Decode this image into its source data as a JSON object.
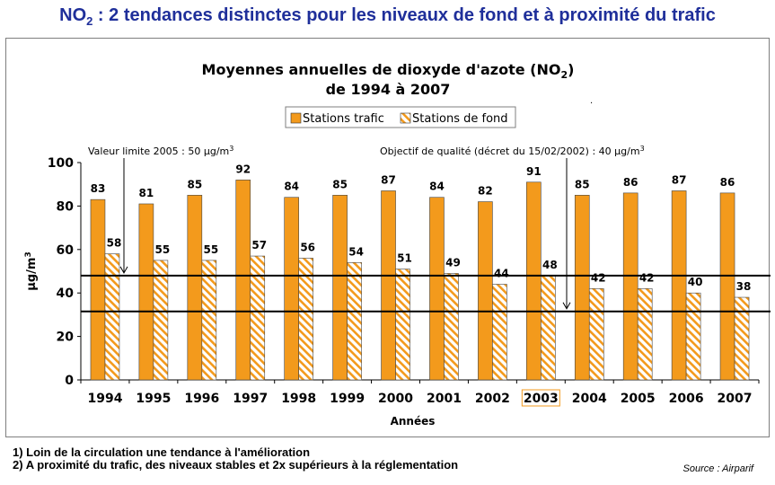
{
  "page": {
    "title_main": "NO",
    "title_sub": "2",
    "title_rest": " : 2 tendances distinctes pour les niveaux de fond et à proximité du trafic",
    "note1": "1) Loin de la circulation une tendance à l'amélioration",
    "note2": "2) A proximité du trafic, des niveaux stables et 2x supérieurs à la réglementation",
    "source": "Source : Airparif"
  },
  "chart_data": {
    "type": "bar",
    "title_line1_main": "Moyennes annuelles de dioxyde d'azote (NO",
    "title_line1_sub": "2",
    "title_line1_end": ")",
    "title_line2": "de 1994 à 2007",
    "xlabel": "Années",
    "ylabel": "µg/m",
    "ylabel_sup": "3",
    "ylim": [
      0,
      100
    ],
    "yticks": [
      0,
      20,
      40,
      60,
      80,
      100
    ],
    "grid": false,
    "legend_position": "top",
    "categories": [
      "1994",
      "1995",
      "1996",
      "1997",
      "1998",
      "1999",
      "2000",
      "2001",
      "2002",
      "2003",
      "2004",
      "2005",
      "2006",
      "2007"
    ],
    "highlighted_category": "2003",
    "series": [
      {
        "name": "Stations trafic",
        "color": "#f39a1c",
        "pattern": "solid",
        "values": [
          83,
          81,
          85,
          92,
          84,
          85,
          87,
          84,
          82,
          91,
          85,
          86,
          87,
          86
        ]
      },
      {
        "name": "Stations de fond",
        "color": "#f39a1c",
        "pattern": "hatched",
        "values": [
          58,
          55,
          55,
          57,
          56,
          54,
          51,
          49,
          44,
          48,
          42,
          42,
          40,
          38
        ]
      }
    ],
    "reference_lines": [
      {
        "value": 48,
        "label": "Valeur limite 2005 : 50 µg/m",
        "label_sup": "3"
      },
      {
        "value": 31.5,
        "label": "Objectif de qualité (décret du 15/02/2002) : 40 µg/m",
        "label_sup": "3"
      }
    ]
  }
}
